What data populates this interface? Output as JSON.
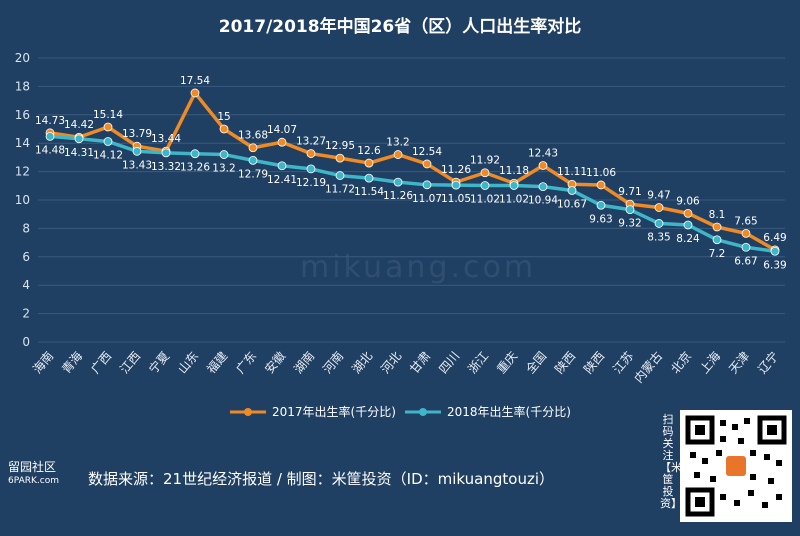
{
  "chart_data": {
    "type": "line",
    "title": "2017/2018年中国26省（区）人口出生率对比",
    "categories": [
      "海南",
      "青海",
      "广西",
      "江西",
      "宁夏",
      "山东",
      "福建",
      "广东",
      "安徽",
      "湖南",
      "河南",
      "湖北",
      "河北",
      "甘肃",
      "四川",
      "浙江",
      "重庆",
      "全国",
      "陕西",
      "陕西",
      "江苏",
      "内蒙古",
      "北京",
      "上海",
      "天津",
      "辽宁"
    ],
    "series": [
      {
        "name": "2017年出生率(千分比)",
        "color": "#f08a24",
        "values": [
          14.73,
          14.42,
          15.14,
          13.79,
          13.44,
          17.54,
          15,
          13.68,
          14.07,
          13.27,
          12.95,
          12.6,
          13.2,
          12.54,
          11.26,
          11.92,
          11.18,
          12.43,
          11.11,
          11.06,
          9.71,
          9.47,
          9.06,
          8.1,
          7.65,
          6.49
        ]
      },
      {
        "name": "2018年出生率(千分比)",
        "color": "#3fb5c8",
        "values": [
          14.48,
          14.31,
          14.12,
          13.43,
          13.32,
          13.26,
          13.2,
          12.79,
          12.41,
          12.19,
          11.72,
          11.54,
          11.26,
          11.07,
          11.05,
          11.02,
          11.02,
          10.94,
          10.67,
          9.63,
          9.32,
          8.35,
          8.24,
          7.2,
          6.67,
          6.39
        ]
      }
    ],
    "ylim": [
      0,
      20
    ],
    "yticks": [
      0,
      2,
      4,
      6,
      8,
      10,
      12,
      14,
      16,
      18,
      20
    ],
    "grid": true,
    "legend_position": "bottom-center"
  },
  "footer": {
    "source": "数据来源：21世纪经济报道 / 制图：米筐投资（ID：mikuangtouzi）",
    "watermark_text": "mikuang.com",
    "site_mark_top": "留园社区",
    "site_mark_bottom": "6PARK.com",
    "qr_caption": "扫码关注【米筐投资】"
  }
}
